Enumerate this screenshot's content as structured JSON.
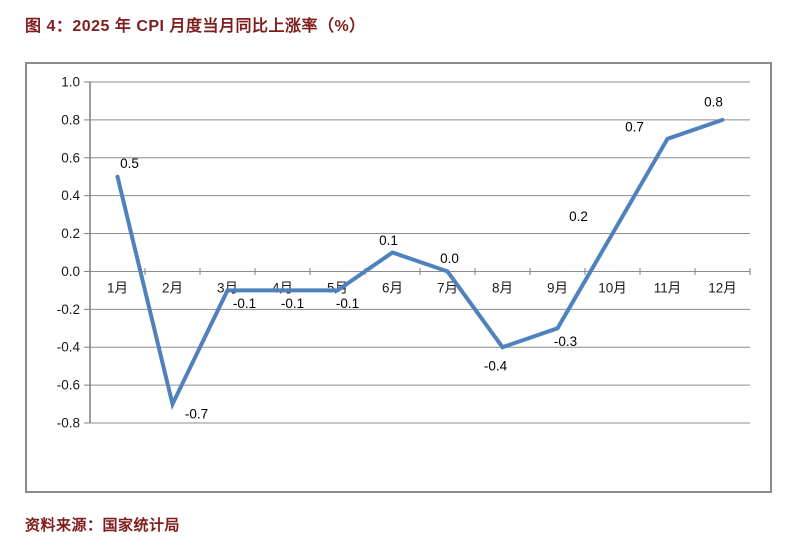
{
  "figure": {
    "title": "图 4：2025 年 CPI 月度当月同比上涨率（%）",
    "source": "资料来源：国家统计局"
  },
  "colors": {
    "heading": "#7f1d1d",
    "line": "#4f81bd",
    "grid": "#8c8c8c",
    "axis": "#7f7f7f",
    "text": "#1a1a1a",
    "data_label": "#000000",
    "chart_border": "#8c8c8c"
  },
  "chart_data": {
    "type": "line",
    "title": "2025 年 CPI 月度当月同比上涨率（%）",
    "categories": [
      "1月",
      "2月",
      "3月",
      "4月",
      "5月",
      "6月",
      "7月",
      "8月",
      "9月",
      "10月",
      "11月",
      "12月"
    ],
    "series": [
      {
        "name": "CPI 当月同比上涨率",
        "values": [
          0.5,
          -0.7,
          -0.1,
          -0.1,
          -0.1,
          0.1,
          0.0,
          -0.4,
          -0.3,
          0.2,
          0.7,
          0.8
        ]
      }
    ],
    "xlabel": "",
    "ylabel": "",
    "ylim": [
      -0.8,
      1.0
    ],
    "ytick_step": 0.2,
    "ytick_labels": [
      "1.0",
      "0.8",
      "0.6",
      "0.4",
      "0.2",
      "0.0",
      "-0.2",
      "-0.4",
      "-0.6",
      "-0.8"
    ],
    "grid": true,
    "legend": "none",
    "data_labels": true,
    "label_decimals": 1
  }
}
